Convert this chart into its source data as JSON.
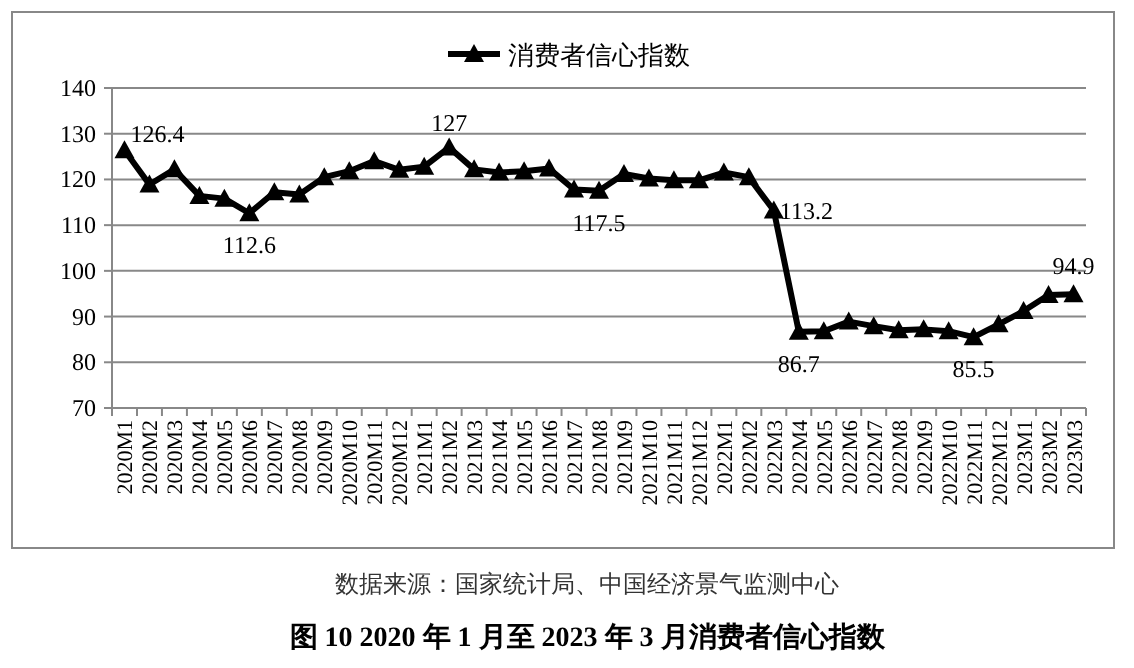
{
  "chart_data": {
    "type": "line",
    "title": "图 10   2020 年 1 月至 2023 年 3 月消费者信心指数",
    "annotations": [
      "数据来源：国家统计局、中国经济景气监测中心"
    ],
    "categories": [
      "2020M1",
      "2020M2",
      "2020M3",
      "2020M4",
      "2020M5",
      "2020M6",
      "2020M7",
      "2020M8",
      "2020M9",
      "2020M10",
      "2020M11",
      "2020M12",
      "2021M1",
      "2021M2",
      "2021M3",
      "2021M4",
      "2021M5",
      "2021M6",
      "2021M7",
      "2021M8",
      "2021M9",
      "2021M10",
      "2021M11",
      "2021M12",
      "2022M1",
      "2022M2",
      "2022M3",
      "2022M4",
      "2022M5",
      "2022M6",
      "2022M7",
      "2022M8",
      "2022M9",
      "2022M10",
      "2022M11",
      "2022M12",
      "2023M1",
      "2023M2",
      "2023M3"
    ],
    "series": [
      {
        "name": "消费者信心指数",
        "color": "#000000",
        "values": [
          126.4,
          118.9,
          122.2,
          116.4,
          115.8,
          112.6,
          117.2,
          116.7,
          120.5,
          121.8,
          124.0,
          122.1,
          122.8,
          127,
          122.2,
          121.5,
          121.8,
          122.4,
          117.8,
          117.5,
          121.2,
          120.2,
          119.8,
          119.8,
          121.5,
          120.5,
          113.2,
          86.7,
          86.8,
          88.9,
          87.9,
          87.0,
          87.2,
          86.8,
          85.5,
          88.3,
          91.2,
          94.7,
          94.9
        ],
        "value_labels": [
          "126.4",
          null,
          null,
          null,
          null,
          "112.6",
          null,
          null,
          null,
          null,
          null,
          null,
          null,
          "127",
          null,
          null,
          null,
          null,
          null,
          "117.5",
          null,
          null,
          null,
          null,
          null,
          null,
          "113.2",
          "86.7",
          null,
          null,
          null,
          null,
          null,
          null,
          "85.5",
          null,
          null,
          null,
          "94.9"
        ]
      }
    ],
    "ylim": [
      70,
      140
    ],
    "yticks": [
      70,
      80,
      90,
      100,
      110,
      120,
      130,
      140
    ],
    "grid": "y",
    "legend": "top",
    "marker": "triangle",
    "line_style": "solid"
  }
}
